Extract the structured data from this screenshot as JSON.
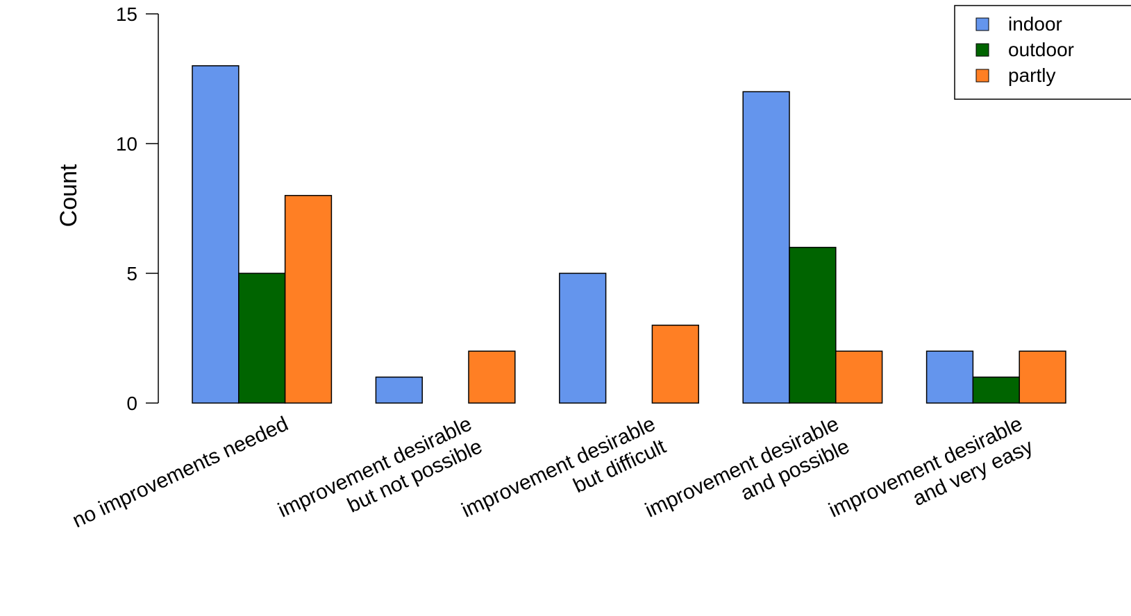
{
  "chart_data": {
    "type": "bar",
    "categories": [
      [
        "no improvements needed"
      ],
      [
        "improvement desirable",
        "but not possible"
      ],
      [
        "improvement desirable",
        "but difficult"
      ],
      [
        "improvement desirable",
        "and possible"
      ],
      [
        "improvement desirable",
        "and very easy"
      ]
    ],
    "series": [
      {
        "name": "indoor",
        "color": "#6495ED",
        "values": [
          13,
          1,
          5,
          12,
          2
        ]
      },
      {
        "name": "outdoor",
        "color": "#006400",
        "values": [
          5,
          0,
          0,
          6,
          1
        ]
      },
      {
        "name": "partly",
        "color": "#FF7F24",
        "values": [
          8,
          2,
          3,
          2,
          2
        ]
      }
    ],
    "ylabel": "Count",
    "ylim": [
      0,
      15
    ],
    "yticks": [
      0,
      5,
      10,
      15
    ],
    "legend_position": "top-right",
    "grid": false
  }
}
